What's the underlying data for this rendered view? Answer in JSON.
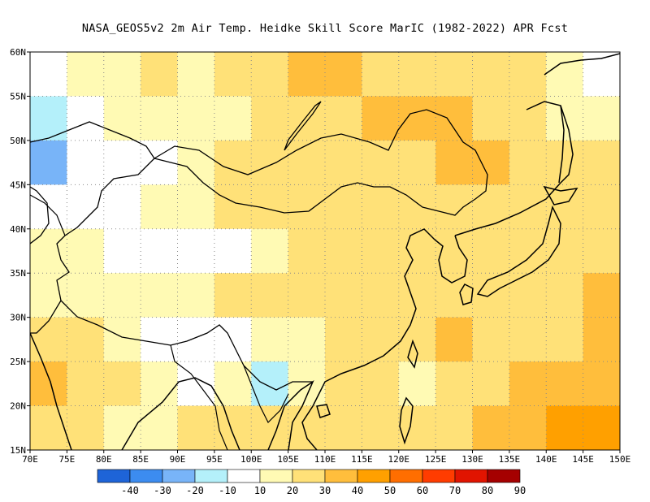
{
  "title": "NASA_GEOS5v2  2m Air Temp. Heidke Skill Score MarIC (1982-2022) APR Fcst",
  "chart_data": {
    "type": "heatmap",
    "title": "NASA_GEOS5v2  2m Air Temp. Heidke Skill Score MarIC (1982-2022) APR Fcst",
    "xlim": [
      70,
      150
    ],
    "ylim": [
      15,
      60
    ],
    "x_ticks": [
      {
        "value": 70,
        "label": "70E"
      },
      {
        "value": 75,
        "label": "75E"
      },
      {
        "value": 80,
        "label": "80E"
      },
      {
        "value": 85,
        "label": "85E"
      },
      {
        "value": 90,
        "label": "90E"
      },
      {
        "value": 95,
        "label": "95E"
      },
      {
        "value": 100,
        "label": "100E"
      },
      {
        "value": 105,
        "label": "105E"
      },
      {
        "value": 110,
        "label": "110E"
      },
      {
        "value": 115,
        "label": "115E"
      },
      {
        "value": 120,
        "label": "120E"
      },
      {
        "value": 125,
        "label": "125E"
      },
      {
        "value": 130,
        "label": "130E"
      },
      {
        "value": 135,
        "label": "135E"
      },
      {
        "value": 140,
        "label": "140E"
      },
      {
        "value": 145,
        "label": "145E"
      },
      {
        "value": 150,
        "label": "150E"
      }
    ],
    "y_ticks": [
      {
        "value": 15,
        "label": "15N"
      },
      {
        "value": 20,
        "label": "20N"
      },
      {
        "value": 25,
        "label": "25N"
      },
      {
        "value": 30,
        "label": "30N"
      },
      {
        "value": 35,
        "label": "35N"
      },
      {
        "value": 40,
        "label": "40N"
      },
      {
        "value": 45,
        "label": "45N"
      },
      {
        "value": 50,
        "label": "50N"
      },
      {
        "value": 55,
        "label": "55N"
      },
      {
        "value": 60,
        "label": "60N"
      }
    ],
    "grid": true,
    "colorbar": {
      "colors": [
        "#1e64d8",
        "#3c8cf0",
        "#78b4f8",
        "#b4f0fa",
        "#ffffff",
        "#fffab4",
        "#ffe178",
        "#ffbe3c",
        "#ffa000",
        "#ff6e00",
        "#ff3c00",
        "#e11400",
        "#a50000"
      ],
      "labels": [
        "-40",
        "-30",
        "-20",
        "-10",
        "10",
        "20",
        "30",
        "40",
        "50",
        "60",
        "70",
        "80",
        "90"
      ]
    },
    "field": {
      "lon_start": 70,
      "lat_start": 60,
      "step": 5,
      "rows": [
        [
          4,
          5,
          5,
          6,
          5,
          6,
          6,
          7,
          7,
          6,
          6,
          6,
          6,
          6,
          5,
          4
        ],
        [
          3,
          4,
          5,
          5,
          5,
          5,
          6,
          6,
          6,
          7,
          7,
          7,
          6,
          6,
          5,
          5
        ],
        [
          2,
          4,
          4,
          4,
          5,
          6,
          6,
          6,
          6,
          6,
          6,
          7,
          7,
          6,
          6,
          6
        ],
        [
          4,
          4,
          4,
          5,
          5,
          6,
          6,
          6,
          6,
          6,
          6,
          6,
          6,
          6,
          6,
          6
        ],
        [
          5,
          5,
          4,
          4,
          4,
          4,
          5,
          6,
          6,
          6,
          6,
          6,
          6,
          6,
          6,
          6
        ],
        [
          5,
          5,
          5,
          5,
          5,
          6,
          6,
          6,
          6,
          6,
          6,
          6,
          6,
          6,
          6,
          7
        ],
        [
          6,
          6,
          5,
          4,
          4,
          4,
          5,
          5,
          6,
          6,
          6,
          7,
          6,
          6,
          6,
          7
        ],
        [
          7,
          6,
          6,
          5,
          4,
          5,
          3,
          5,
          6,
          6,
          5,
          6,
          6,
          7,
          7,
          7
        ],
        [
          6,
          6,
          5,
          5,
          6,
          6,
          6,
          6,
          6,
          6,
          6,
          6,
          7,
          7,
          8,
          8
        ]
      ]
    }
  }
}
